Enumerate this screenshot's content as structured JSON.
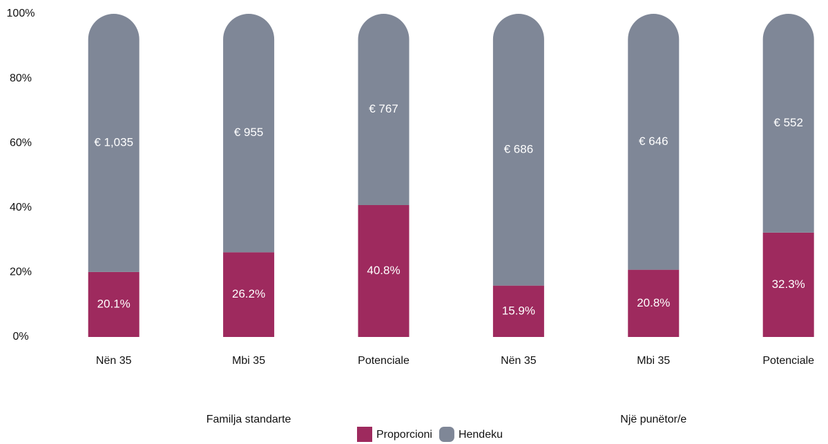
{
  "chart_data": {
    "type": "stacked_bar",
    "categories": [
      "Nën 35",
      "Mbi 35",
      "Potenciale",
      "Nën 35",
      "Mbi 35",
      "Potenciale"
    ],
    "groups": [
      "Familja standarte",
      "Një punëtor/e"
    ],
    "series": [
      {
        "name": "Proporcioni",
        "color": "#9e2a5e",
        "values": [
          20.1,
          26.2,
          40.8,
          15.9,
          20.8,
          32.3
        ],
        "value_labels": [
          "20.1%",
          "26.2%",
          "40.8%",
          "15.9%",
          "20.8%",
          "32.3%"
        ]
      },
      {
        "name": "Hendeku",
        "color": "#7f8797",
        "values": [
          79.9,
          73.8,
          59.2,
          84.1,
          79.2,
          67.7
        ],
        "labels": [
          "€ 1,035",
          "€ 955",
          "€ 767",
          "€ 686",
          "€ 646",
          "€ 552"
        ]
      }
    ],
    "ylim": [
      0,
      100
    ],
    "yticks": [
      {
        "value": 0,
        "label": "0%"
      },
      {
        "value": 20,
        "label": "20%"
      },
      {
        "value": 40,
        "label": "40%"
      },
      {
        "value": 60,
        "label": "60%"
      },
      {
        "value": 80,
        "label": "80%"
      },
      {
        "value": 100,
        "label": "100%"
      }
    ],
    "grid": false,
    "legend": "bottom"
  }
}
